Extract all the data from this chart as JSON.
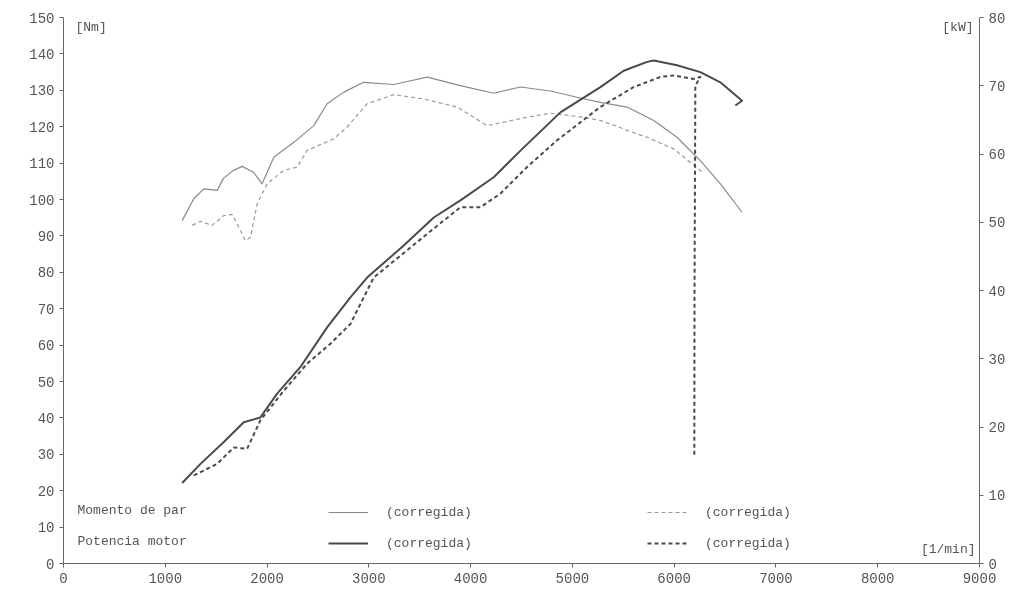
{
  "chart_data": {
    "type": "line",
    "xlabel": "[1/min]",
    "ylabel": "[Nm]",
    "y2label": "[kW]",
    "xlim": [
      0,
      9000
    ],
    "xticks": [
      0,
      1000,
      2000,
      3000,
      4000,
      5000,
      6000,
      7000,
      8000,
      9000
    ],
    "ylim": [
      0,
      150
    ],
    "yticks": [
      0,
      10,
      20,
      30,
      40,
      50,
      60,
      70,
      80,
      90,
      100,
      110,
      120,
      130,
      140,
      150
    ],
    "y2lim": [
      0,
      80
    ],
    "y2ticks": [
      0,
      10,
      20,
      30,
      40,
      50,
      60,
      70,
      80
    ],
    "grid": false,
    "legend": "bottom left",
    "marker": "none",
    "annotations": [
      "Momento de par",
      "Potencia motor"
    ],
    "series": [
      {
        "name": "(corregida)",
        "color": "#8a8a8a",
        "line_style": "solid",
        "x": [
          1166,
          1280,
          1378,
          1510,
          1572,
          1670,
          1755,
          1866,
          1952,
          2066,
          2263,
          2459,
          2590,
          2754,
          2950,
          3245,
          3573,
          3900,
          4227,
          4490,
          4784,
          5046,
          5275,
          5537,
          5799,
          6028,
          6257,
          6454,
          6667
        ],
        "values": [
          94.2,
          100.2,
          102.9,
          102.5,
          105.8,
          108,
          109.1,
          107.5,
          104.3,
          111.6,
          115.7,
          120.3,
          126.3,
          129.5,
          132.2,
          131.6,
          133.6,
          131.3,
          129.2,
          130.9,
          129.8,
          128.1,
          126.7,
          125.4,
          121.7,
          117.1,
          110.7,
          104.3,
          96.5
        ]
      },
      {
        "name": "(corregida)",
        "color": "#9a9a9a",
        "line_style": "dashed",
        "x": [
          1264,
          1346,
          1460,
          1575,
          1657,
          1722,
          1788,
          1837,
          1903,
          2001,
          2164,
          2296,
          2394,
          2656,
          2787,
          2983,
          3245,
          3540,
          3867,
          4162,
          4555,
          4784,
          5111,
          5275,
          5439,
          5537,
          5734,
          5995,
          6257,
          6287
        ],
        "values": [
          92.9,
          94.0,
          92.9,
          95.6,
          95.9,
          92.4,
          88.7,
          89.6,
          98.8,
          104.3,
          108,
          108.9,
          113.5,
          116.7,
          119.9,
          126.3,
          128.8,
          127.6,
          125.4,
          120.3,
          122.6,
          123.7,
          122.6,
          121.7,
          120.1,
          119,
          117.1,
          113.9,
          108,
          107.1
        ]
      },
      {
        "name": "(corregida)",
        "color": "#4a4a4a",
        "line_style": "solid",
        "axis": "y2",
        "x": [
          1166,
          1346,
          1575,
          1771,
          1935,
          2099,
          2328,
          2590,
          2819,
          2983,
          3343,
          3638,
          3900,
          4227,
          4490,
          4882,
          5275,
          5504,
          5734,
          5799,
          6028,
          6257,
          6454,
          6667,
          6601
        ],
        "values": [
          11.8,
          14.6,
          17.8,
          20.7,
          21.4,
          24.9,
          28.8,
          34.6,
          39.0,
          41.9,
          46.6,
          50.7,
          53.2,
          56.6,
          60.5,
          66.1,
          69.8,
          72.2,
          73.5,
          73.7,
          73.0,
          72.0,
          70.5,
          67.8,
          67.1
        ]
      },
      {
        "name": "(corregida)",
        "color": "#4a4a4a",
        "line_style": "dashed",
        "axis": "y2",
        "x": [
          1280,
          1510,
          1673,
          1804,
          1935,
          2164,
          2394,
          2623,
          2819,
          3048,
          3573,
          3900,
          4096,
          4293,
          4555,
          4849,
          5275,
          5602,
          5865,
          5995,
          6192,
          6257,
          6208,
          6200,
          6198
        ],
        "values": [
          12.9,
          14.6,
          17.0,
          16.8,
          21.0,
          25.3,
          29.3,
          32.2,
          35.1,
          41.9,
          48.3,
          52.2,
          52.2,
          54.2,
          58.1,
          62.0,
          66.9,
          69.8,
          71.3,
          71.5,
          71.0,
          71.3,
          70.0,
          40.0,
          15.8
        ]
      }
    ]
  }
}
